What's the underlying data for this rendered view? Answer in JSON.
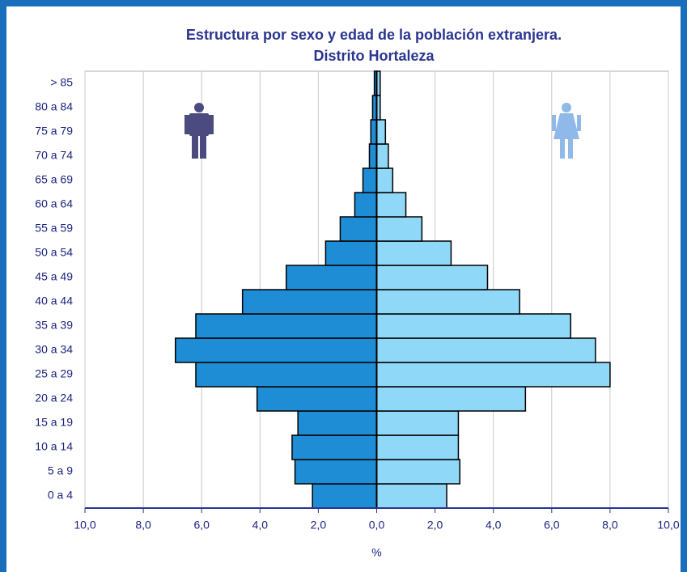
{
  "chart_data": {
    "type": "pyramid",
    "title": "Estructura por sexo y edad de la población extranjera.",
    "subtitle": "Distrito Hortaleza",
    "xlabel": "%",
    "categories": [
      "0 a 4",
      "5 a 9",
      "10 a 14",
      "15 a 19",
      "20 a 24",
      "25 a 29",
      "30 a 34",
      "35 a 39",
      "40 a 44",
      "45 a 49",
      "50 a 54",
      "55 a 59",
      "60 a 64",
      "65 a 69",
      "70 a 74",
      "75 a 79",
      "80 a 84",
      "> 85"
    ],
    "series": [
      {
        "color": "#1f8dd6",
        "values": [
          -2.2,
          -2.8,
          -2.9,
          -2.7,
          -4.1,
          -6.2,
          -6.9,
          -6.2,
          -4.6,
          -3.1,
          -1.75,
          -1.25,
          -0.75,
          -0.47,
          -0.25,
          -0.2,
          -0.14,
          -0.08
        ]
      },
      {
        "color": "#90d8f8",
        "values": [
          2.4,
          2.85,
          2.8,
          2.8,
          5.1,
          8.0,
          7.5,
          6.65,
          4.9,
          3.8,
          2.55,
          1.55,
          1.0,
          0.55,
          0.4,
          0.3,
          0.12,
          0.12
        ]
      }
    ],
    "xlim": [
      -10,
      10
    ],
    "xticks": [
      {
        "value": -10,
        "label": "10,0"
      },
      {
        "value": -8,
        "label": "8,0"
      },
      {
        "value": -6,
        "label": "6,0"
      },
      {
        "value": -4,
        "label": "4,0"
      },
      {
        "value": -2,
        "label": "2,0"
      },
      {
        "value": 0,
        "label": "0,0"
      },
      {
        "value": 2,
        "label": "2,0"
      },
      {
        "value": 4,
        "label": "4,0"
      },
      {
        "value": 6,
        "label": "6,0"
      },
      {
        "value": 8,
        "label": "8,0"
      },
      {
        "value": 10,
        "label": "10,0"
      }
    ],
    "grid": true
  }
}
